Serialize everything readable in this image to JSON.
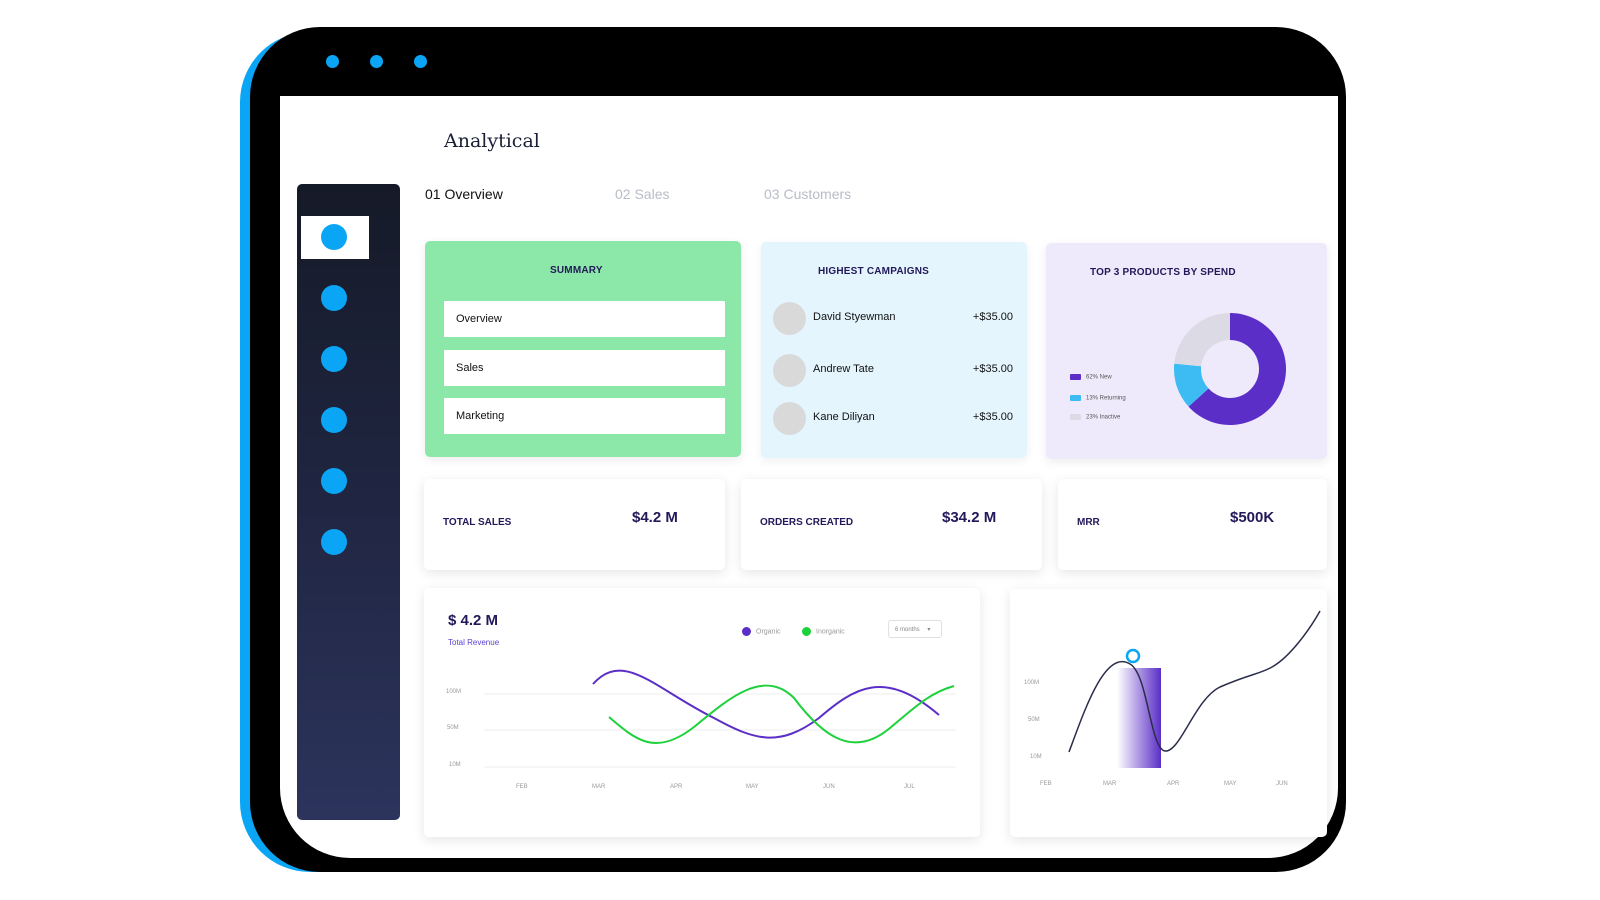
{
  "app": {
    "title": "Analytical"
  },
  "tabs": [
    {
      "label": "01 Overview",
      "active": true
    },
    {
      "label": "02 Sales",
      "active": false
    },
    {
      "label": "03 Customers",
      "active": false
    }
  ],
  "summary": {
    "title": "SUMMARY",
    "items": [
      "Overview",
      "Sales",
      "Marketing"
    ]
  },
  "campaigns": {
    "title": "HIGHEST CAMPAIGNS",
    "rows": [
      {
        "name": "David Styewman",
        "amount": "+$35.00"
      },
      {
        "name": "Andrew Tate",
        "amount": "+$35.00"
      },
      {
        "name": "Kane Diliyan",
        "amount": "+$35.00"
      }
    ]
  },
  "products": {
    "title": "TOP 3 PRODUCTS BY SPEND",
    "legend": [
      {
        "label": "62% New",
        "color": "#5b2ec7"
      },
      {
        "label": "13% Returning",
        "color": "#3cbcf3"
      },
      {
        "label": "23% Inactive",
        "color": "#dcdbe5"
      }
    ]
  },
  "stats": [
    {
      "label": "TOTAL SALES",
      "value": "$4.2 M"
    },
    {
      "label": "ORDERS CREATED",
      "value": "$34.2 M"
    },
    {
      "label": "MRR",
      "value": "$500K"
    }
  ],
  "revenue": {
    "amount": "$ 4.2 M",
    "subtitle": "Total Revenue",
    "legend": [
      {
        "label": "Organic",
        "color": "#5b2ec7"
      },
      {
        "label": "Inorganic",
        "color": "#1dd13a"
      }
    ],
    "period": "6 months",
    "y_ticks": [
      "100M",
      "50M",
      "10M"
    ],
    "x_ticks": [
      "FEB",
      "MAR",
      "APR",
      "MAY",
      "JUN",
      "JUL"
    ]
  },
  "curve_chart": {
    "y_ticks": [
      "100M",
      "50M",
      "10M"
    ],
    "x_ticks": [
      "FEB",
      "MAR",
      "APR",
      "MAY",
      "JUN"
    ]
  },
  "chart_data": [
    {
      "type": "pie",
      "title": "TOP 3 PRODUCTS BY SPEND",
      "categories": [
        "New",
        "Returning",
        "Inactive"
      ],
      "values": [
        62,
        13,
        23
      ]
    },
    {
      "type": "line",
      "xlabel": "",
      "ylabel": "",
      "categories": [
        "FEB",
        "MAR",
        "APR",
        "MAY",
        "JUN",
        "JUL"
      ],
      "yticks": [
        "10M",
        "50M",
        "100M"
      ]
    },
    {
      "type": "line",
      "xlabel": "",
      "ylabel": "",
      "categories": [
        "FEB",
        "MAR",
        "APR",
        "MAY",
        "JUN"
      ],
      "yticks": [
        "10M",
        "50M",
        "100M"
      ]
    }
  ],
  "colors": {
    "accent": "#0aa6f5",
    "sidebar": "#1c2138",
    "summary_bg": "#8ce8a8",
    "campaigns_bg": "#e4f5fd",
    "products_bg": "#efeafb",
    "heading": "#23195a"
  }
}
